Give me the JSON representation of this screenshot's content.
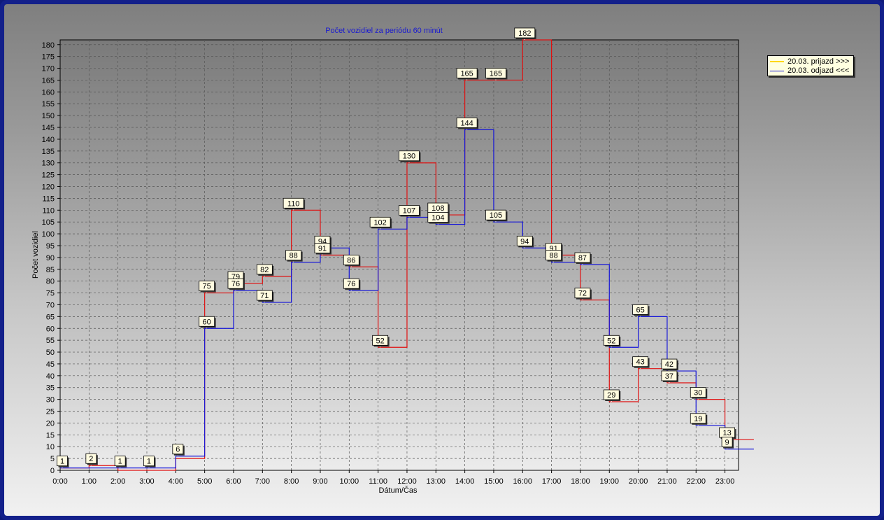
{
  "chart_data": {
    "type": "line",
    "step": true,
    "title": "Počet vozidiel za periódu 60 minút",
    "xlabel": "Dátum/Čas",
    "ylabel": "Počet vozidiel",
    "categories": [
      "0:00",
      "1:00",
      "2:00",
      "3:00",
      "4:00",
      "5:00",
      "6:00",
      "7:00",
      "8:00",
      "9:00",
      "10:00",
      "11:00",
      "12:00",
      "13:00",
      "14:00",
      "15:00",
      "16:00",
      "17:00",
      "18:00",
      "19:00",
      "20:00",
      "21:00",
      "22:00",
      "23:00"
    ],
    "ylim": [
      0,
      182
    ],
    "ytick_step": 5,
    "grid": true,
    "legend_position": "top-right",
    "series": [
      {
        "name": "20.03.  prijazd >>>",
        "legend_color": "#ffd800",
        "line_color": "#e01010",
        "values": [
          1,
          2,
          0,
          0,
          5,
          75,
          79,
          82,
          110,
          91,
          86,
          52,
          130,
          108,
          165,
          165,
          182,
          91,
          72,
          29,
          43,
          37,
          30,
          13
        ]
      },
      {
        "name": "20.03.  odjazd <<<",
        "legend_color": "#1515d8",
        "line_color": "#1515d8",
        "values": [
          1,
          1,
          1,
          1,
          6,
          60,
          76,
          71,
          88,
          94,
          76,
          102,
          107,
          104,
          144,
          105,
          94,
          88,
          87,
          52,
          65,
          42,
          19,
          9
        ]
      }
    ],
    "data_labels": [
      {
        "x": "0:00",
        "text": "1"
      },
      {
        "x": "1:00",
        "text": "2"
      },
      {
        "x": "2:00",
        "text": "1"
      },
      {
        "x": "3:00",
        "text": "1"
      },
      {
        "x": "4:00",
        "text": "6"
      },
      {
        "x": "5:00",
        "text": "75"
      },
      {
        "x": "5:00",
        "text": "60"
      },
      {
        "x": "6:00",
        "text": "79"
      },
      {
        "x": "6:00",
        "text": "76"
      },
      {
        "x": "7:00",
        "text": "82"
      },
      {
        "x": "7:00",
        "text": "71"
      },
      {
        "x": "8:00",
        "text": "110"
      },
      {
        "x": "8:00",
        "text": "88"
      },
      {
        "x": "9:00",
        "text": "94"
      },
      {
        "x": "9:00",
        "text": "91"
      },
      {
        "x": "10:00",
        "text": "86"
      },
      {
        "x": "10:00",
        "text": "76"
      },
      {
        "x": "11:00",
        "text": "102"
      },
      {
        "x": "11:00",
        "text": "52"
      },
      {
        "x": "12:00",
        "text": "130"
      },
      {
        "x": "12:00",
        "text": "107"
      },
      {
        "x": "13:00",
        "text": "108"
      },
      {
        "x": "13:00",
        "text": "104"
      },
      {
        "x": "14:00",
        "text": "165"
      },
      {
        "x": "14:00",
        "text": "144"
      },
      {
        "x": "15:00",
        "text": "165"
      },
      {
        "x": "15:00",
        "text": "105"
      },
      {
        "x": "16:00",
        "text": "182"
      },
      {
        "x": "16:00",
        "text": "94"
      },
      {
        "x": "17:00",
        "text": "91"
      },
      {
        "x": "17:00",
        "text": "88"
      },
      {
        "x": "18:00",
        "text": "87"
      },
      {
        "x": "18:00",
        "text": "72"
      },
      {
        "x": "19:00",
        "text": "52"
      },
      {
        "x": "19:00",
        "text": "29"
      },
      {
        "x": "20:00",
        "text": "65"
      },
      {
        "x": "20:00",
        "text": "43"
      },
      {
        "x": "21:00",
        "text": "42"
      },
      {
        "x": "21:00",
        "text": "37"
      },
      {
        "x": "22:00",
        "text": "30"
      },
      {
        "x": "22:00",
        "text": "19"
      },
      {
        "x": "23:00",
        "text": "13"
      },
      {
        "x": "23:00",
        "text": "9"
      }
    ]
  }
}
